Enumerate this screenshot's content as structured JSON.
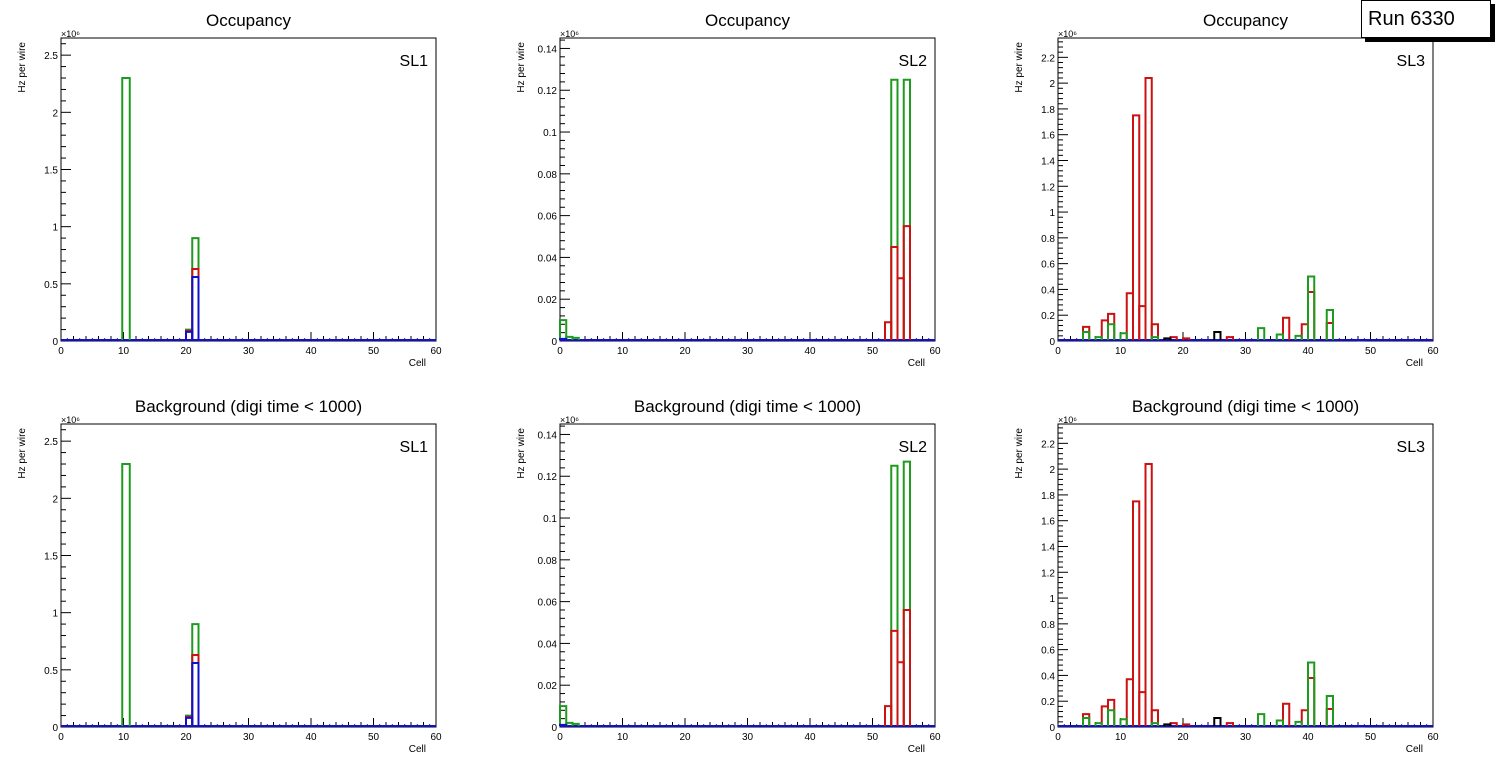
{
  "run_label": "Run 6330",
  "colors": {
    "green": "#1e9b1e",
    "red": "#cc1111",
    "blue": "#1010cc",
    "black": "#000000"
  },
  "chart_data": [
    {
      "type": "bar",
      "title": "Occupancy",
      "label": "SL1",
      "xlabel": "Cell",
      "ylabel": "Hz per wire",
      "y_exponent": "×10⁶",
      "xlim": [
        0,
        60
      ],
      "ylim": [
        0,
        2.65
      ],
      "x_ticks": [
        0,
        10,
        20,
        30,
        40,
        50,
        60
      ],
      "y_ticks": [
        0,
        0.5,
        1,
        1.5,
        2,
        2.5
      ],
      "series": [
        {
          "color": "green",
          "bins": [
            [
              9.8,
              11,
              2.3
            ],
            [
              20,
              21,
              0.1
            ],
            [
              21,
              22,
              0.9
            ]
          ]
        },
        {
          "color": "red",
          "bins": [
            [
              20,
              21,
              0.09
            ],
            [
              21,
              22,
              0.63
            ]
          ]
        },
        {
          "color": "blue",
          "bins": [
            [
              20,
              21,
              0.08
            ],
            [
              21,
              22,
              0.56
            ]
          ]
        }
      ]
    },
    {
      "type": "bar",
      "title": "Occupancy",
      "label": "SL2",
      "xlabel": "Cell",
      "ylabel": "Hz per wire",
      "y_exponent": "×10⁶",
      "xlim": [
        0,
        60
      ],
      "ylim": [
        0,
        0.145
      ],
      "x_ticks": [
        0,
        10,
        20,
        30,
        40,
        50,
        60
      ],
      "y_ticks": [
        0,
        0.02,
        0.04,
        0.06,
        0.08,
        0.1,
        0.12,
        0.14
      ],
      "series": [
        {
          "color": "green",
          "bins": [
            [
              0,
              1,
              0.01
            ],
            [
              1,
              2,
              0.002
            ],
            [
              2,
              3,
              0.0015
            ],
            [
              53,
              54,
              0.125
            ],
            [
              55,
              56,
              0.125
            ]
          ]
        },
        {
          "color": "red",
          "bins": [
            [
              52,
              53,
              0.009
            ],
            [
              53,
              54,
              0.045
            ],
            [
              54,
              55,
              0.03
            ],
            [
              55,
              56,
              0.055
            ]
          ]
        },
        {
          "color": "blue",
          "bins": [
            [
              0,
              1,
              0.001
            ]
          ]
        }
      ]
    },
    {
      "type": "bar",
      "title": "Occupancy",
      "label": "SL3",
      "xlabel": "Cell",
      "ylabel": "Hz per wire",
      "y_exponent": "×10⁶",
      "xlim": [
        0,
        60
      ],
      "ylim": [
        0,
        2.35
      ],
      "x_ticks": [
        0,
        10,
        20,
        30,
        40,
        50,
        60
      ],
      "y_ticks": [
        0,
        0.2,
        0.4,
        0.6,
        0.8,
        1,
        1.2,
        1.4,
        1.6,
        1.8,
        2,
        2.2
      ],
      "series": [
        {
          "color": "red",
          "bins": [
            [
              4,
              5,
              0.11
            ],
            [
              7,
              8,
              0.16
            ],
            [
              8,
              9,
              0.21
            ],
            [
              11,
              12,
              0.37
            ],
            [
              12,
              13,
              1.75
            ],
            [
              13,
              14,
              0.27
            ],
            [
              14,
              15,
              2.04
            ],
            [
              15,
              16,
              0.13
            ],
            [
              18,
              19,
              0.03
            ],
            [
              20,
              21,
              0.02
            ],
            [
              27,
              28,
              0.03
            ],
            [
              36,
              37,
              0.18
            ],
            [
              39,
              40,
              0.13
            ],
            [
              40,
              41,
              0.38
            ],
            [
              43,
              44,
              0.14
            ]
          ]
        },
        {
          "color": "green",
          "bins": [
            [
              4,
              5,
              0.07
            ],
            [
              6,
              7,
              0.03
            ],
            [
              8,
              9,
              0.13
            ],
            [
              10,
              11,
              0.06
            ],
            [
              15,
              16,
              0.03
            ],
            [
              32,
              33,
              0.1
            ],
            [
              35,
              36,
              0.05
            ],
            [
              38,
              39,
              0.04
            ],
            [
              40,
              41,
              0.5
            ],
            [
              43,
              44,
              0.24
            ]
          ]
        },
        {
          "color": "black",
          "bins": [
            [
              17,
              18,
              0.02
            ],
            [
              25,
              26,
              0.07
            ]
          ]
        },
        {
          "color": "blue",
          "bins": [
            [
              48,
              49,
              0.005
            ]
          ]
        }
      ]
    },
    {
      "type": "bar",
      "title": "Background (digi time < 1000)",
      "label": "SL1",
      "xlabel": "Cell",
      "ylabel": "Hz per wire",
      "y_exponent": "×10⁶",
      "xlim": [
        0,
        60
      ],
      "ylim": [
        0,
        2.65
      ],
      "x_ticks": [
        0,
        10,
        20,
        30,
        40,
        50,
        60
      ],
      "y_ticks": [
        0,
        0.5,
        1,
        1.5,
        2,
        2.5
      ],
      "series": [
        {
          "color": "green",
          "bins": [
            [
              9.8,
              11,
              2.3
            ],
            [
              20,
              21,
              0.1
            ],
            [
              21,
              22,
              0.9
            ]
          ]
        },
        {
          "color": "red",
          "bins": [
            [
              20,
              21,
              0.09
            ],
            [
              21,
              22,
              0.63
            ]
          ]
        },
        {
          "color": "blue",
          "bins": [
            [
              20,
              21,
              0.08
            ],
            [
              21,
              22,
              0.56
            ]
          ]
        }
      ]
    },
    {
      "type": "bar",
      "title": "Background (digi time < 1000)",
      "label": "SL2",
      "xlabel": "Cell",
      "ylabel": "Hz per wire",
      "y_exponent": "×10⁶",
      "xlim": [
        0,
        60
      ],
      "ylim": [
        0,
        0.145
      ],
      "x_ticks": [
        0,
        10,
        20,
        30,
        40,
        50,
        60
      ],
      "y_ticks": [
        0,
        0.02,
        0.04,
        0.06,
        0.08,
        0.1,
        0.12,
        0.14
      ],
      "series": [
        {
          "color": "green",
          "bins": [
            [
              0,
              1,
              0.01
            ],
            [
              1,
              2,
              0.002
            ],
            [
              2,
              3,
              0.0015
            ],
            [
              53,
              54,
              0.125
            ],
            [
              55,
              56,
              0.127
            ]
          ]
        },
        {
          "color": "red",
          "bins": [
            [
              52,
              53,
              0.01
            ],
            [
              53,
              54,
              0.046
            ],
            [
              54,
              55,
              0.031
            ],
            [
              55,
              56,
              0.056
            ]
          ]
        },
        {
          "color": "blue",
          "bins": [
            [
              0,
              1,
              0.001
            ]
          ]
        }
      ]
    },
    {
      "type": "bar",
      "title": "Background (digi time < 1000)",
      "label": "SL3",
      "xlabel": "Cell",
      "ylabel": "Hz per wire",
      "y_exponent": "×10⁶",
      "xlim": [
        0,
        60
      ],
      "ylim": [
        0,
        2.35
      ],
      "x_ticks": [
        0,
        10,
        20,
        30,
        40,
        50,
        60
      ],
      "y_ticks": [
        0,
        0.2,
        0.4,
        0.6,
        0.8,
        1,
        1.2,
        1.4,
        1.6,
        1.8,
        2,
        2.2
      ],
      "series": [
        {
          "color": "red",
          "bins": [
            [
              4,
              5,
              0.1
            ],
            [
              7,
              8,
              0.16
            ],
            [
              8,
              9,
              0.21
            ],
            [
              11,
              12,
              0.37
            ],
            [
              12,
              13,
              1.75
            ],
            [
              13,
              14,
              0.27
            ],
            [
              14,
              15,
              2.04
            ],
            [
              15,
              16,
              0.13
            ],
            [
              18,
              19,
              0.03
            ],
            [
              20,
              21,
              0.02
            ],
            [
              27,
              28,
              0.03
            ],
            [
              36,
              37,
              0.18
            ],
            [
              39,
              40,
              0.13
            ],
            [
              40,
              41,
              0.38
            ],
            [
              43,
              44,
              0.14
            ]
          ]
        },
        {
          "color": "green",
          "bins": [
            [
              4,
              5,
              0.07
            ],
            [
              6,
              7,
              0.03
            ],
            [
              8,
              9,
              0.13
            ],
            [
              10,
              11,
              0.06
            ],
            [
              15,
              16,
              0.03
            ],
            [
              32,
              33,
              0.1
            ],
            [
              35,
              36,
              0.05
            ],
            [
              38,
              39,
              0.04
            ],
            [
              40,
              41,
              0.5
            ],
            [
              43,
              44,
              0.24
            ]
          ]
        },
        {
          "color": "black",
          "bins": [
            [
              17,
              18,
              0.02
            ],
            [
              25,
              26,
              0.07
            ]
          ]
        },
        {
          "color": "blue",
          "bins": [
            [
              48,
              49,
              0.005
            ]
          ]
        }
      ]
    }
  ]
}
